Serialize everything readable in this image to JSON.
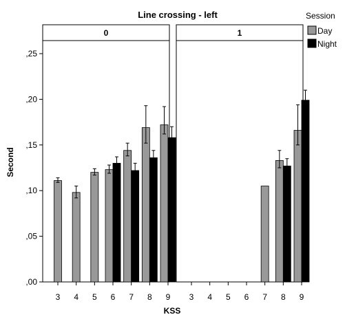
{
  "chart_data": {
    "type": "bar",
    "title": "Line crossing - left",
    "xlabel": "KSS",
    "ylabel": "Second",
    "ylim": [
      0,
      0.25
    ],
    "yticks": [
      ",00",
      ",05",
      ",10",
      ",15",
      ",20",
      ",25"
    ],
    "ytick_values": [
      0,
      0.05,
      0.1,
      0.15,
      0.2,
      0.25
    ],
    "categories": [
      "3",
      "4",
      "5",
      "6",
      "7",
      "8",
      "9"
    ],
    "legend": {
      "title": "Session",
      "placement": "top-right"
    },
    "colors": {
      "Day": "#999999",
      "Night": "#000000"
    },
    "panels": [
      {
        "label": "0",
        "series": [
          {
            "name": "Day",
            "values": [
              0.111,
              0.098,
              0.12,
              0.123,
              0.144,
              0.169,
              0.172
            ],
            "error": [
              [
                0.109,
                0.114
              ],
              [
                0.092,
                0.105
              ],
              [
                0.117,
                0.124
              ],
              [
                0.119,
                0.128
              ],
              [
                0.138,
                0.152
              ],
              [
                0.152,
                0.193
              ],
              [
                0.162,
                0.192
              ]
            ]
          },
          {
            "name": "Night",
            "values": [
              null,
              null,
              null,
              0.13,
              0.122,
              0.136,
              0.158
            ],
            "error": [
              null,
              null,
              null,
              [
                0.125,
                0.137
              ],
              [
                0.115,
                0.13
              ],
              [
                0.13,
                0.144
              ],
              [
                0.15,
                0.17
              ]
            ]
          }
        ]
      },
      {
        "label": "1",
        "series": [
          {
            "name": "Day",
            "values": [
              null,
              null,
              null,
              null,
              0.105,
              0.133,
              0.166
            ],
            "error": [
              null,
              null,
              null,
              null,
              null,
              [
                0.125,
                0.144
              ],
              [
                0.15,
                0.194
              ]
            ]
          },
          {
            "name": "Night",
            "values": [
              null,
              null,
              null,
              null,
              null,
              0.127,
              0.199
            ],
            "error": [
              null,
              null,
              null,
              null,
              null,
              [
                0.12,
                0.135
              ],
              [
                0.19,
                0.21
              ]
            ]
          }
        ]
      }
    ]
  }
}
